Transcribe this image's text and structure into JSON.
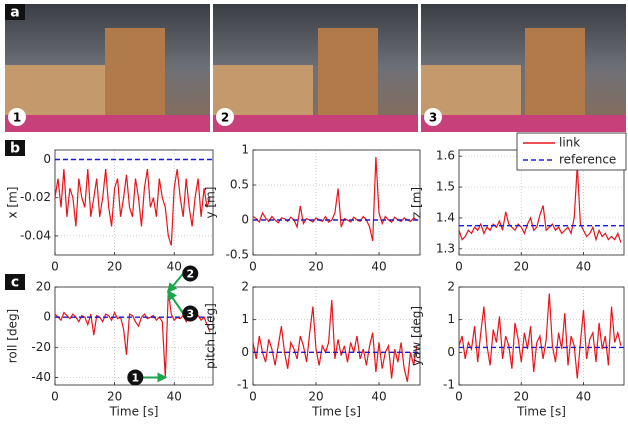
{
  "panel_labels": [
    "a",
    "b",
    "c"
  ],
  "photo_labels": [
    "1",
    "2",
    "3"
  ],
  "chart_data": [
    {
      "type": "line",
      "ylabel": "x [m]",
      "xlim": [
        0,
        53
      ],
      "xticks": [
        0,
        20,
        40
      ],
      "ylim": [
        -0.05,
        0.005
      ],
      "yticks": [
        -0.04,
        -0.02,
        0
      ],
      "grid": true,
      "x": [
        0,
        1,
        2,
        3,
        4,
        5,
        6,
        7,
        8,
        9,
        10,
        11,
        12,
        13,
        14,
        15,
        16,
        17,
        18,
        19,
        20,
        21,
        22,
        23,
        24,
        25,
        26,
        27,
        28,
        29,
        30,
        31,
        32,
        33,
        34,
        35,
        36,
        37,
        38,
        39,
        40,
        41,
        42,
        43,
        44,
        45,
        46,
        47,
        48,
        49,
        50,
        51,
        52
      ],
      "series": [
        {
          "name": "link",
          "color": "#e8141b",
          "values": [
            -0.02,
            -0.01,
            -0.025,
            -0.005,
            -0.03,
            -0.015,
            -0.02,
            -0.035,
            -0.01,
            -0.02,
            -0.025,
            -0.005,
            -0.03,
            -0.02,
            -0.01,
            -0.03,
            -0.02,
            -0.005,
            -0.025,
            -0.035,
            -0.015,
            -0.01,
            -0.03,
            -0.02,
            -0.008,
            -0.025,
            -0.03,
            -0.01,
            -0.02,
            -0.035,
            -0.015,
            -0.005,
            -0.025,
            -0.02,
            -0.03,
            -0.01,
            -0.02,
            -0.025,
            -0.04,
            -0.045,
            -0.015,
            -0.005,
            -0.02,
            -0.03,
            -0.01,
            -0.025,
            -0.035,
            -0.02,
            -0.01,
            -0.03,
            -0.015,
            -0.025,
            -0.02
          ]
        },
        {
          "name": "reference",
          "color": "#1a1adb",
          "x": [
            0,
            53
          ],
          "values": [
            0,
            0
          ]
        }
      ]
    },
    {
      "type": "line",
      "ylabel": "y [m]",
      "xlim": [
        0,
        53
      ],
      "xticks": [
        0,
        20,
        40
      ],
      "ylim": [
        -0.5,
        1
      ],
      "yticks": [
        -0.5,
        0,
        0.5,
        1
      ],
      "grid": true,
      "x": [
        0,
        1,
        2,
        3,
        4,
        5,
        6,
        7,
        8,
        9,
        10,
        11,
        12,
        13,
        14,
        15,
        16,
        17,
        18,
        19,
        20,
        21,
        22,
        23,
        24,
        25,
        26,
        27,
        28,
        29,
        30,
        31,
        32,
        33,
        34,
        35,
        36,
        37,
        38,
        39,
        40,
        41,
        42,
        43,
        44,
        45,
        46,
        47,
        48,
        49,
        50,
        51,
        52
      ],
      "series": [
        {
          "name": "link",
          "color": "#e8141b",
          "values": [
            0.05,
            0.02,
            -0.03,
            0.1,
            0.03,
            -0.02,
            0.05,
            0,
            -0.04,
            0.03,
            0.02,
            -0.02,
            0.04,
            0,
            -0.1,
            0.2,
            -0.05,
            0.02,
            0,
            -0.03,
            0.03,
            0,
            -0.02,
            0.05,
            -0.03,
            0,
            0.1,
            0.45,
            -0.1,
            0.02,
            0,
            -0.03,
            0.04,
            0,
            -0.02,
            0.05,
            0,
            -0.1,
            -0.3,
            0.9,
            0.1,
            -0.05,
            0.05,
            0,
            -0.03,
            0.04,
            0,
            -0.02,
            0.03,
            0,
            -0.02,
            0.03,
            0
          ]
        },
        {
          "name": "reference",
          "color": "#1a1adb",
          "x": [
            0,
            53
          ],
          "values": [
            0,
            0
          ]
        }
      ]
    },
    {
      "type": "line",
      "ylabel": "z [m]",
      "xlim": [
        0,
        53
      ],
      "xticks": [
        0,
        20,
        40
      ],
      "ylim": [
        1.28,
        1.62
      ],
      "yticks": [
        1.3,
        1.4,
        1.5,
        1.6
      ],
      "grid": true,
      "legend": "top-right",
      "x": [
        0,
        1,
        2,
        3,
        4,
        5,
        6,
        7,
        8,
        9,
        10,
        11,
        12,
        13,
        14,
        15,
        16,
        17,
        18,
        19,
        20,
        21,
        22,
        23,
        24,
        25,
        26,
        27,
        28,
        29,
        30,
        31,
        32,
        33,
        34,
        35,
        36,
        37,
        38,
        39,
        40,
        41,
        42,
        43,
        44,
        45,
        46,
        47,
        48,
        49,
        50,
        51,
        52
      ],
      "series": [
        {
          "name": "link",
          "color": "#e8141b",
          "values": [
            1.36,
            1.33,
            1.34,
            1.36,
            1.35,
            1.37,
            1.36,
            1.38,
            1.35,
            1.37,
            1.36,
            1.38,
            1.37,
            1.39,
            1.36,
            1.42,
            1.38,
            1.37,
            1.36,
            1.38,
            1.37,
            1.35,
            1.38,
            1.4,
            1.36,
            1.37,
            1.41,
            1.44,
            1.36,
            1.37,
            1.38,
            1.36,
            1.37,
            1.35,
            1.36,
            1.37,
            1.35,
            1.4,
            1.57,
            1.38,
            1.36,
            1.34,
            1.35,
            1.37,
            1.33,
            1.36,
            1.34,
            1.35,
            1.33,
            1.34,
            1.33,
            1.35,
            1.32
          ]
        },
        {
          "name": "reference",
          "color": "#1a1adb",
          "x": [
            0,
            53
          ],
          "values": [
            1.375,
            1.375
          ]
        }
      ]
    },
    {
      "type": "line",
      "ylabel": "roll [deg]",
      "xlabel": "Time [s]",
      "xlim": [
        0,
        53
      ],
      "xticks": [
        0,
        20,
        40
      ],
      "ylim": [
        -45,
        20
      ],
      "yticks": [
        -40,
        -20,
        0,
        20
      ],
      "grid": true,
      "annotations": [
        "1",
        "2",
        "3"
      ],
      "x": [
        0,
        1,
        2,
        3,
        4,
        5,
        6,
        7,
        8,
        9,
        10,
        11,
        12,
        13,
        14,
        15,
        16,
        17,
        18,
        19,
        20,
        21,
        22,
        23,
        24,
        25,
        26,
        27,
        28,
        29,
        30,
        31,
        32,
        33,
        34,
        35,
        36,
        37,
        38,
        39,
        40,
        41,
        42,
        43,
        44,
        45,
        46,
        47,
        48,
        49,
        50,
        51,
        52
      ],
      "series": [
        {
          "name": "link",
          "color": "#e8141b",
          "values": [
            2,
            0,
            -2,
            3,
            1,
            -1,
            2,
            0,
            -3,
            1,
            0,
            -5,
            2,
            -12,
            1,
            0,
            -3,
            2,
            1,
            -2,
            3,
            -1,
            0,
            -8,
            -25,
            2,
            1,
            -3,
            -6,
            0,
            2,
            -1,
            0,
            1,
            -2,
            0,
            -3,
            -40,
            17,
            2,
            -2,
            0,
            -1,
            1,
            -3,
            0,
            2,
            -1,
            1,
            -2,
            0,
            -5,
            -10
          ]
        },
        {
          "name": "reference",
          "color": "#1a1adb",
          "x": [
            0,
            53
          ],
          "values": [
            0,
            0
          ]
        }
      ]
    },
    {
      "type": "line",
      "ylabel": "pitch [deg]",
      "xlabel": "Time [s]",
      "xlim": [
        0,
        53
      ],
      "xticks": [
        0,
        20,
        40
      ],
      "ylim": [
        -1,
        2
      ],
      "yticks": [
        -1,
        0,
        1,
        2
      ],
      "grid": true,
      "x": [
        0,
        1,
        2,
        3,
        4,
        5,
        6,
        7,
        8,
        9,
        10,
        11,
        12,
        13,
        14,
        15,
        16,
        17,
        18,
        19,
        20,
        21,
        22,
        23,
        24,
        25,
        26,
        27,
        28,
        29,
        30,
        31,
        32,
        33,
        34,
        35,
        36,
        37,
        38,
        39,
        40,
        41,
        42,
        43,
        44,
        45,
        46,
        47,
        48,
        49,
        50,
        51,
        52
      ],
      "series": [
        {
          "name": "link",
          "color": "#e8141b",
          "values": [
            0.3,
            -0.2,
            0.5,
            0,
            -0.3,
            0.4,
            0.1,
            -0.4,
            0.2,
            0.8,
            0,
            -0.5,
            0.3,
            0.1,
            -0.2,
            0.5,
            0.2,
            -0.3,
            0.6,
            1.4,
            0.1,
            -0.4,
            0.2,
            0,
            0.3,
            1.6,
            -0.2,
            0.4,
            -0.1,
            0.2,
            -0.3,
            0.3,
            0,
            0.5,
            -0.2,
            0.1,
            -0.4,
            0.2,
            0.6,
            -0.6,
            0.3,
            -0.5,
            0,
            0.2,
            -0.8,
            0.1,
            -0.3,
            0.3,
            -0.5,
            -0.9,
            0,
            -0.4,
            0.2
          ]
        },
        {
          "name": "reference",
          "color": "#1a1adb",
          "x": [
            0,
            53
          ],
          "values": [
            0,
            0
          ]
        }
      ]
    },
    {
      "type": "line",
      "ylabel": "yaw [deg]",
      "xlabel": "Time [s]",
      "xlim": [
        0,
        53
      ],
      "xticks": [
        0,
        20,
        40
      ],
      "ylim": [
        -1,
        2
      ],
      "yticks": [
        -1,
        0,
        1,
        2
      ],
      "grid": true,
      "x": [
        0,
        1,
        2,
        3,
        4,
        5,
        6,
        7,
        8,
        9,
        10,
        11,
        12,
        13,
        14,
        15,
        16,
        17,
        18,
        19,
        20,
        21,
        22,
        23,
        24,
        25,
        26,
        27,
        28,
        29,
        30,
        31,
        32,
        33,
        34,
        35,
        36,
        37,
        38,
        39,
        40,
        41,
        42,
        43,
        44,
        45,
        46,
        47,
        48,
        49,
        50,
        51,
        52
      ],
      "series": [
        {
          "name": "link",
          "color": "#e8141b",
          "values": [
            0.2,
            0.5,
            -0.2,
            0.3,
            0.1,
            0.8,
            -0.3,
            0.6,
            1.4,
            0.2,
            -0.4,
            0.7,
            0.3,
            1.1,
            -0.2,
            0.5,
            0.2,
            -0.5,
            0.9,
            0.4,
            -0.3,
            0.6,
            0.1,
            0.8,
            -0.6,
            0.3,
            0.5,
            -0.2,
            0.4,
            1.8,
            0.2,
            -0.3,
            0.6,
            0.1,
            1.2,
            -0.4,
            0.5,
            0.2,
            -0.8,
            0.3,
            1.3,
            -0.2,
            0.4,
            0.6,
            -0.3,
            0.9,
            0.1,
            0.5,
            -0.4,
            1.4,
            0.3,
            0.6,
            0.2
          ]
        },
        {
          "name": "reference",
          "color": "#1a1adb",
          "x": [
            0,
            53
          ],
          "values": [
            0.15,
            0.15
          ]
        }
      ]
    }
  ]
}
